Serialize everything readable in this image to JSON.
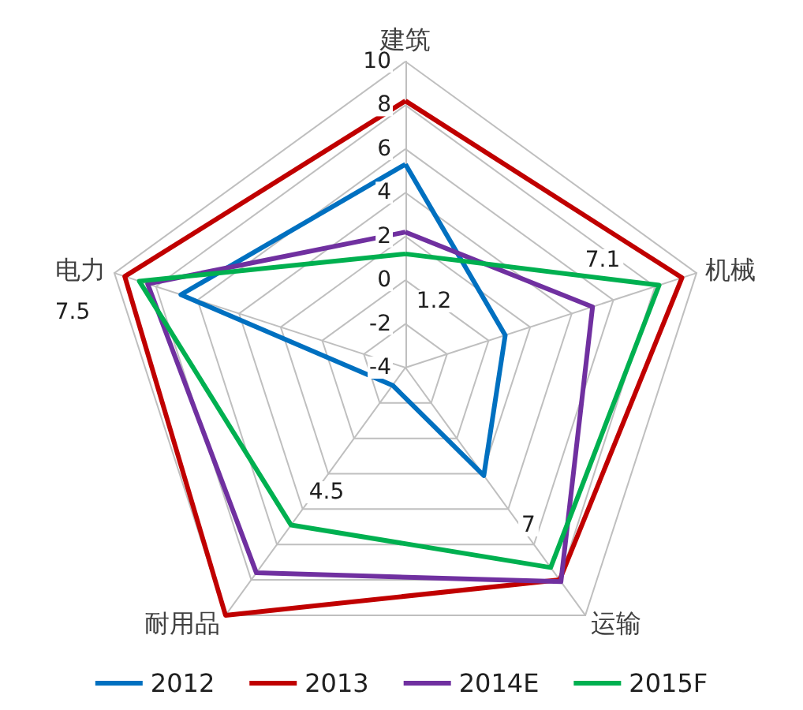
{
  "chart_data": {
    "type": "radar",
    "categories": [
      "建筑",
      "机械",
      "运输",
      "耐用品",
      "电力"
    ],
    "ylim": [
      -4,
      10
    ],
    "yticks": [
      -4,
      -2,
      0,
      2,
      4,
      6,
      8,
      10
    ],
    "legend": "bottom",
    "marker": "none",
    "series": [
      {
        "name": "2012",
        "color": "#0070c0",
        "values": [
          5.3,
          0.8,
          2.1,
          -3.0,
          6.8
        ]
      },
      {
        "name": "2013",
        "color": "#c00000",
        "values": [
          8.2,
          9.3,
          8.0,
          10,
          9.5
        ]
      },
      {
        "name": "2014E",
        "color": "#7030a0",
        "values": [
          2.2,
          5.0,
          8.1,
          7.6,
          8.4
        ]
      },
      {
        "name": "2015F",
        "color": "#00b050",
        "values": [
          1.2,
          8.2,
          7.3,
          4.9,
          8.8
        ]
      }
    ],
    "annotations": [
      "1.2",
      "7.1",
      "7",
      "4.5",
      "7.5"
    ]
  }
}
